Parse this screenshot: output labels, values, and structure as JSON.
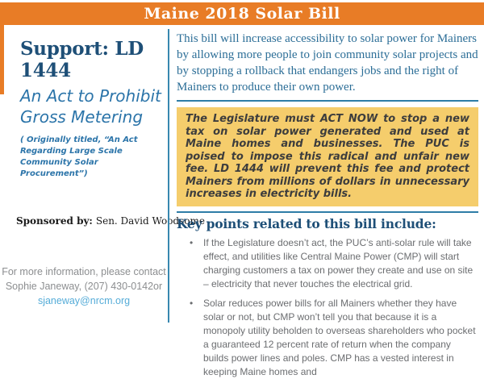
{
  "header": {
    "title": "Maine 2018 Solar Bill"
  },
  "colors": {
    "accent_orange": "#E87C26",
    "heading_navy": "#1E4F77",
    "subtitle_blue": "#2B74A9",
    "intro_blue": "#2C6E97",
    "rule_teal": "#2E7DA7",
    "highlight_yellow": "#F5CD6C",
    "highlight_text": "#3D3D3D",
    "body_gray": "#6B6D70",
    "contact_gray": "#8C8E90",
    "link_blue": "#55ACD8"
  },
  "sidebar": {
    "support_heading": "Support: LD 1444",
    "act_title": "An Act to Prohibit Gross Metering",
    "original_note": "( Originally titled, “An Act Regarding Large Scale Community Solar Procurement”)",
    "sponsored_by_label": "Sponsored by:",
    "sponsor_name": "Sen. David Woodsome",
    "contact_line1": "For more information, please contact",
    "contact_line2": "Sophie Janeway, (207) 430-0142or",
    "contact_email": "sjaneway@nrcm.org"
  },
  "main": {
    "intro": "This bill will increase accessibility to solar power for Mainers by allowing more people to join community solar projects and by stopping a rollback that endangers jobs and the right of Mainers to produce their own power.",
    "highlight": "The Legislature must ACT NOW to stop a new tax on solar power generated and used at Maine homes and businesses. The PUC is poised to impose this radical and unfair new fee. LD 1444 will prevent this fee and protect Mainers from millions of dollars in unnecessary increases in electricity bills.",
    "key_points_heading": "Key points related to this bill include:",
    "bullets": [
      "If the Legislature doesn’t act, the PUC’s anti-solar rule will take effect, and utilities like Central Maine Power (CMP) will start charging customers a tax on power they create and use on site – electricity that never touches the electrical grid.",
      "Solar reduces power bills for all Mainers whether they have solar or not, but CMP won’t tell you that because it is a monopoly utility beholden to overseas shareholders who pocket a guaranteed 12 percent rate of return when the company builds power lines and poles. CMP has a vested interest in keeping Maine homes and"
    ]
  }
}
